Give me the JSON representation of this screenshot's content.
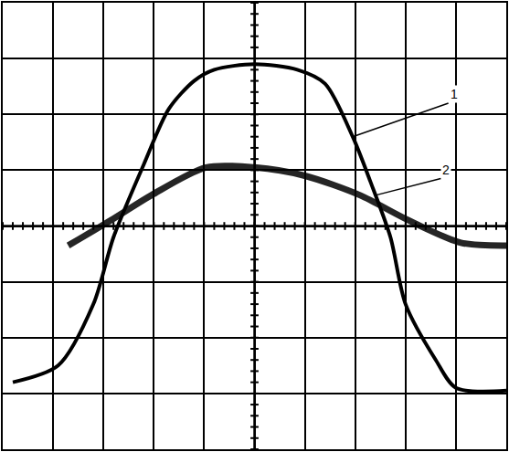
{
  "chart_data": {
    "type": "line",
    "xlim": [
      -5,
      5
    ],
    "ylim": [
      -4,
      4
    ],
    "xticks": [
      -5,
      -4,
      -3,
      -2,
      -1,
      0,
      1,
      2,
      3,
      4,
      5
    ],
    "yticks": [
      -4,
      -3,
      -2,
      -1,
      0,
      1,
      2,
      3,
      4
    ],
    "grid": true,
    "tick_labels": false,
    "series": [
      {
        "name": "1",
        "color": "#000000",
        "line_style": "solid",
        "x": [
          -4.8,
          -3.9,
          -3.2,
          -2.8,
          -2.2,
          -1.7,
          -1.2,
          -0.8,
          0,
          0.85,
          1.4,
          1.95,
          2.3,
          2.7,
          3.0,
          3.6,
          4.0,
          5.0
        ],
        "values": [
          -2.8,
          -2.5,
          -1.4,
          -0.2,
          1.1,
          2.1,
          2.6,
          2.8,
          2.9,
          2.8,
          2.55,
          1.6,
          0.8,
          -0.2,
          -1.4,
          -2.4,
          -2.9,
          -2.95
        ]
      },
      {
        "name": "2",
        "color": "#000000",
        "line_style": "solid",
        "x": [
          -3.7,
          -2.8,
          -2.05,
          -0.96,
          0,
          1.0,
          2.1,
          3.0,
          4.1,
          5.0
        ],
        "values": [
          -0.35,
          0.13,
          0.55,
          1.05,
          1.05,
          0.9,
          0.55,
          0.13,
          -0.3,
          -0.35
        ]
      }
    ]
  }
}
